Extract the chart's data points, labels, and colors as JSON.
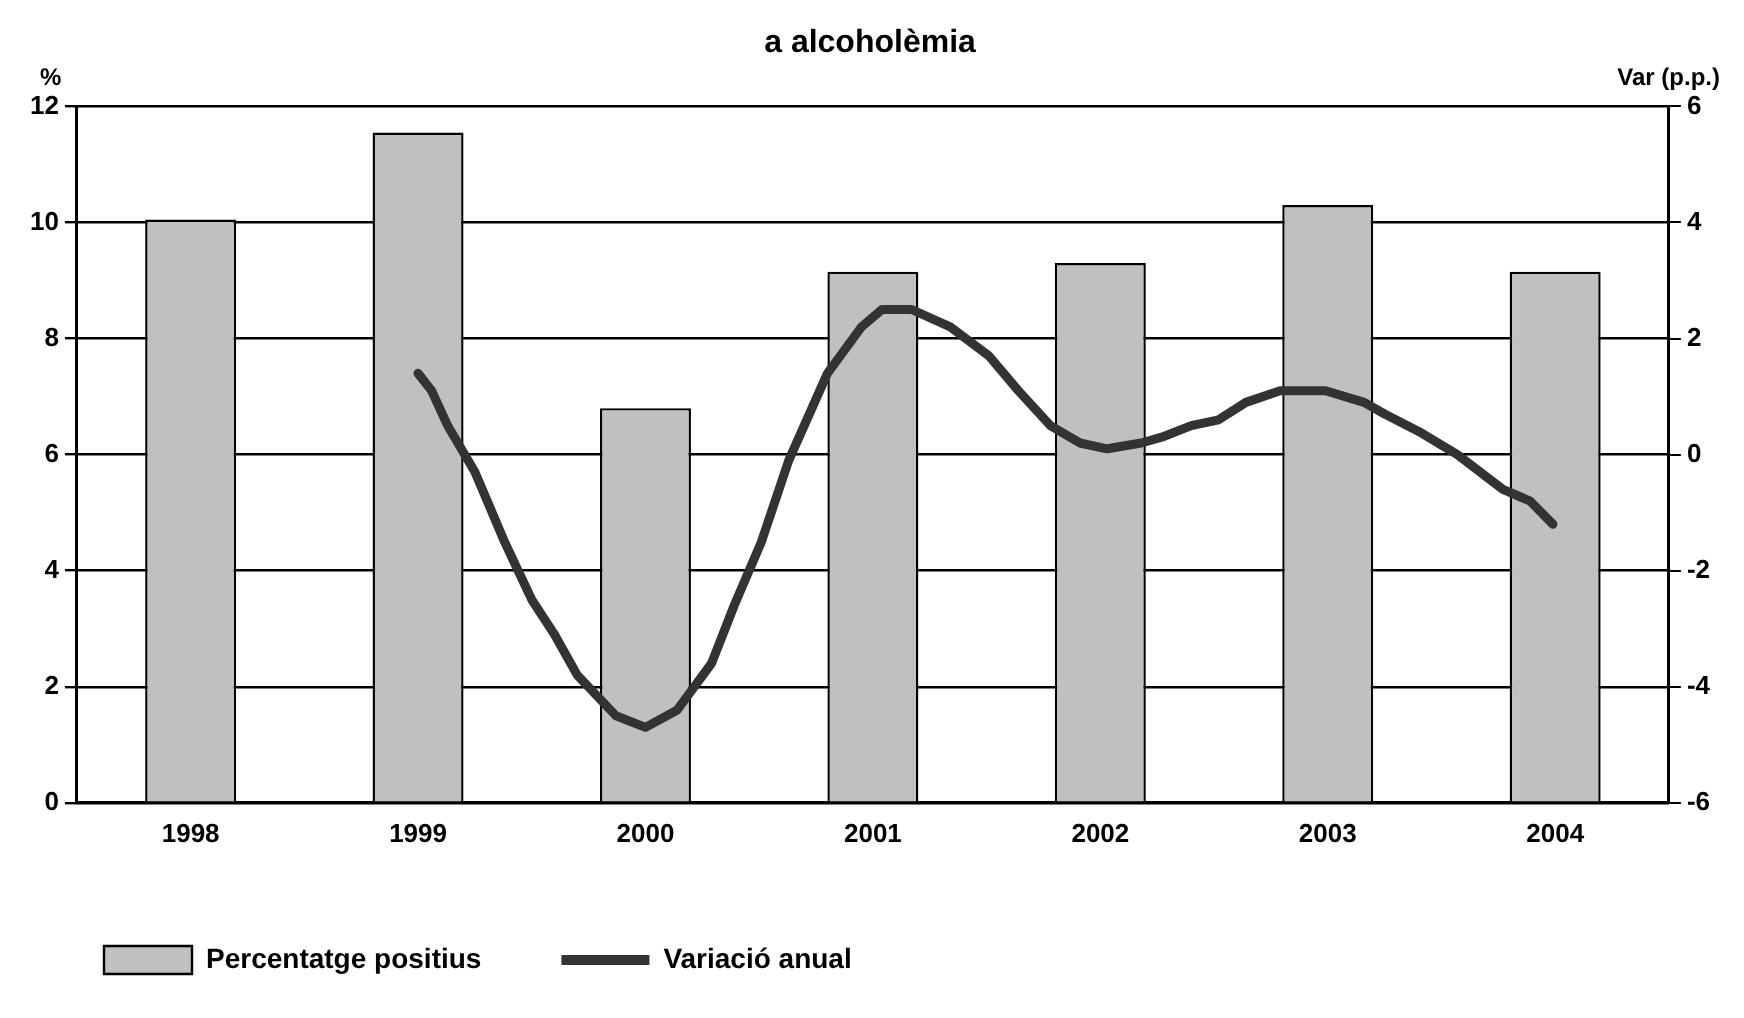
{
  "chart_data": {
    "type": "bar",
    "title": "a alcoholèmia",
    "ylabel": "%",
    "y2label": "Var (p.p.)",
    "x": [
      1998,
      1999,
      2000,
      2001,
      2002,
      2003,
      2004
    ],
    "xlim": [
      1997.5,
      2004.5
    ],
    "xticks": [
      1998,
      1999,
      2000,
      2001,
      2002,
      2003,
      2004
    ],
    "ylim": [
      0,
      12
    ],
    "yticks": [
      0,
      2,
      4,
      6,
      8,
      10,
      12
    ],
    "y2lim": [
      -6,
      6
    ],
    "y2ticks": [
      -6,
      -4,
      -2,
      0,
      2,
      4,
      6
    ],
    "grid": "y",
    "legend": "bottom left",
    "series": [
      {
        "name": "Percentatge positius",
        "color": "#c0c0c0",
        "values": [
          10.05,
          11.55,
          6.8,
          9.15,
          9.3,
          10.3,
          9.15
        ]
      },
      {
        "name": "Variació anual",
        "type": "line",
        "axis": "y2",
        "color": "#333333",
        "marker": "none",
        "x": [
          1999.0,
          1999.06,
          1999.13,
          1999.25,
          1999.38,
          1999.5,
          1999.6,
          1999.7,
          1999.87,
          2000.0,
          2000.14,
          2000.29,
          2000.39,
          2000.51,
          2000.63,
          2000.8,
          2000.95,
          2001.04,
          2001.17,
          2001.34,
          2001.51,
          2001.64,
          2001.78,
          2001.91,
          2002.03,
          2002.18,
          2002.27,
          2002.4,
          2002.52,
          2002.64,
          2002.79,
          2002.99,
          2003.16,
          2003.25,
          2003.4,
          2003.57,
          2003.77,
          2003.89,
          2003.99
        ],
        "values": [
          1.4,
          1.1,
          0.5,
          -0.3,
          -1.5,
          -2.5,
          -3.1,
          -3.8,
          -4.5,
          -4.7,
          -4.4,
          -3.6,
          -2.6,
          -1.5,
          -0.1,
          1.4,
          2.2,
          2.5,
          2.5,
          2.2,
          1.7,
          1.1,
          0.5,
          0.2,
          0.1,
          0.2,
          0.3,
          0.5,
          0.6,
          0.9,
          1.1,
          1.1,
          0.9,
          0.7,
          0.4,
          0.0,
          -0.6,
          -0.8,
          -1.2
        ]
      }
    ]
  }
}
